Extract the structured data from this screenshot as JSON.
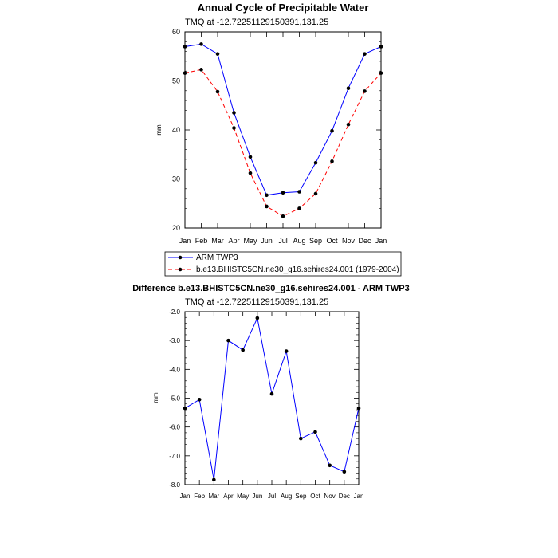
{
  "chart_data": [
    {
      "type": "line",
      "title": "Annual Cycle of Precipitable Water",
      "subtitle": "TMQ at -12.72251129150391,131.25",
      "ylabel": "mm",
      "xlabel": "",
      "ylim": [
        20,
        60
      ],
      "yticks": [
        "20",
        "30",
        "40",
        "50",
        "60"
      ],
      "categories": [
        "Jan",
        "Feb",
        "Mar",
        "Apr",
        "May",
        "Jun",
        "Jul",
        "Aug",
        "Sep",
        "Oct",
        "Nov",
        "Dec",
        "Jan"
      ],
      "series": [
        {
          "name": "ARM TWP3",
          "color": "#0000ff",
          "dash": "solid",
          "values": [
            57.0,
            57.5,
            55.5,
            43.5,
            34.5,
            26.7,
            27.2,
            27.4,
            33.3,
            39.8,
            48.5,
            55.5,
            57.0
          ]
        },
        {
          "name": "b.e13.BHISTC5CN.ne30_g16.sehires24.001 (1979-2004)",
          "color": "#ff0000",
          "dash": "dashed",
          "values": [
            51.6,
            52.3,
            47.8,
            40.4,
            31.2,
            24.4,
            22.4,
            24.0,
            27.0,
            33.6,
            41.1,
            47.9,
            51.6
          ]
        }
      ]
    },
    {
      "type": "line",
      "title": "Difference b.e13.BHISTC5CN.ne30_g16.sehires24.001 - ARM TWP3",
      "subtitle": "TMQ at -12.72251129150391,131.25",
      "ylabel": "mm",
      "xlabel": "",
      "ylim": [
        -8.0,
        -2.0
      ],
      "yticks": [
        "-8.0",
        "-7.0",
        "-6.0",
        "-5.0",
        "-4.0",
        "-3.0",
        "-2.0"
      ],
      "categories": [
        "Jan",
        "Feb",
        "Mar",
        "Apr",
        "May",
        "Jun",
        "Jul",
        "Aug",
        "Sep",
        "Oct",
        "Nov",
        "Dec",
        "Jan"
      ],
      "series": [
        {
          "name": "Difference",
          "color": "#0000ff",
          "dash": "solid",
          "values": [
            -5.35,
            -5.05,
            -7.83,
            -3.0,
            -3.33,
            -2.22,
            -4.85,
            -3.37,
            -6.4,
            -6.17,
            -7.33,
            -7.55,
            -5.35
          ]
        }
      ]
    }
  ]
}
